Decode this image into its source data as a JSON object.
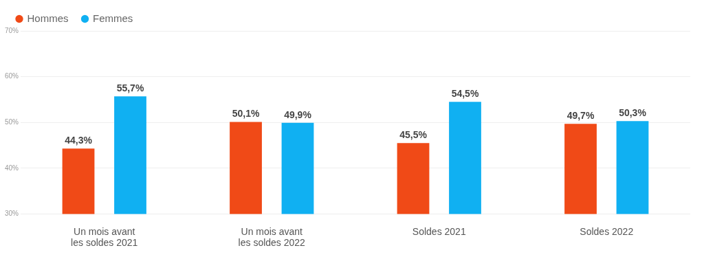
{
  "chart_data": {
    "type": "bar",
    "categories": [
      "Un mois avant les soldes 2021",
      "Un mois avant les soldes 2022",
      "Soldes 2021",
      "Soldes 2022"
    ],
    "series": [
      {
        "name": "Hommes",
        "color": "#f04a17",
        "values": [
          44.3,
          50.1,
          45.5,
          49.7
        ],
        "value_labels": [
          "44,3%",
          "50,1%",
          "45,5%",
          "49,7%"
        ]
      },
      {
        "name": "Femmes",
        "color": "#10b0f2",
        "values": [
          55.7,
          49.9,
          54.5,
          50.3
        ],
        "value_labels": [
          "55,7%",
          "49,9%",
          "54,5%",
          "50,3%"
        ]
      }
    ],
    "ylim": [
      30,
      70
    ],
    "yticks": [
      {
        "value": 30,
        "label": "30%"
      },
      {
        "value": 40,
        "label": "40%"
      },
      {
        "value": 50,
        "label": "50%"
      },
      {
        "value": 60,
        "label": "60%"
      },
      {
        "value": 70,
        "label": "70%"
      }
    ],
    "grid": true,
    "legend": "top-left",
    "data_labels": true
  }
}
